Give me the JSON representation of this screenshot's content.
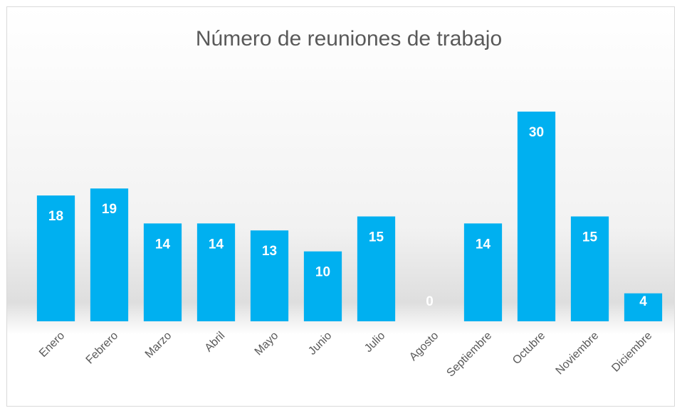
{
  "chart_data": {
    "type": "bar",
    "title": "Número de reuniones de trabajo",
    "categories": [
      "Enero",
      "Febrero",
      "Marzo",
      "Abril",
      "Mayo",
      "Junio",
      "Julio",
      "Agosto",
      "Septiembre",
      "Octubre",
      "Noviembre",
      "Diciembre"
    ],
    "values": [
      18,
      19,
      14,
      14,
      13,
      10,
      15,
      0,
      14,
      30,
      15,
      4
    ],
    "color": "#00b0f0",
    "ylim": [
      0,
      30
    ]
  }
}
